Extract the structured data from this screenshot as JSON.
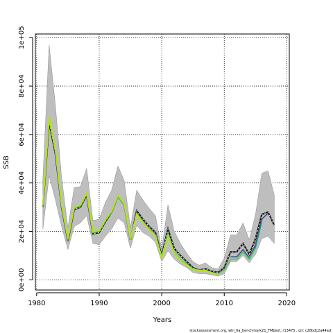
{
  "chart_data": {
    "type": "line",
    "xlabel": "Years",
    "ylabel": "SSB",
    "xlim": [
      1979.8,
      2020.4
    ],
    "ylim": [
      -4200,
      101500
    ],
    "grid": true,
    "x_ticks": [
      1980,
      1990,
      2000,
      2010,
      2020
    ],
    "x_tick_labels": [
      "1980",
      "1990",
      "2000",
      "2010",
      "2020"
    ],
    "y_ticks": [
      0,
      20000,
      40000,
      60000,
      80000,
      100000
    ],
    "y_tick_labels": [
      "0e+00",
      "2e+04",
      "4e+04",
      "6e+04",
      "8e+04",
      "1e+05"
    ],
    "footer": "stockassessment.org, whi_6a_benchmark21_TMbest, r13475 , git: c28bdc2a44ad",
    "colors": {
      "band": "#bebebe",
      "band_edge": "#8c8c8c",
      "main": "#1a1a1a",
      "inner_band": "#7fc97f",
      "series": [
        "#3b528b",
        "#21908c",
        "#5dc863",
        "#b5de2b"
      ]
    },
    "confidence_band": {
      "x": [
        1981,
        1982,
        1983,
        1984,
        1985,
        1986,
        1987,
        1988,
        1989,
        1990,
        1991,
        1992,
        1993,
        1994,
        1995,
        1996,
        1997,
        1998,
        1999,
        2000,
        2001,
        2002,
        2003,
        2004,
        2005,
        2006,
        2007,
        2008,
        2009,
        2010,
        2011,
        2012,
        2013,
        2014,
        2015,
        2016,
        2017,
        2018
      ],
      "low": [
        21000,
        43000,
        33000,
        22000,
        12500,
        22000,
        23500,
        26500,
        15000,
        14500,
        18000,
        21000,
        25500,
        23500,
        13000,
        22500,
        19500,
        18000,
        15500,
        7500,
        12000,
        8500,
        6500,
        5000,
        3000,
        2500,
        2500,
        2000,
        1500,
        2500,
        7500,
        7500,
        10000,
        7000,
        10500,
        17000,
        18000,
        15000
      ],
      "high": [
        42000,
        97000,
        72000,
        42000,
        21500,
        38000,
        38500,
        46000,
        24500,
        25000,
        32000,
        37000,
        47000,
        41000,
        21500,
        37000,
        33000,
        29500,
        26500,
        12500,
        31000,
        20000,
        15000,
        11000,
        7500,
        6000,
        7000,
        5000,
        4500,
        9000,
        18500,
        18500,
        23500,
        16500,
        27000,
        44000,
        45000,
        35000
      ]
    },
    "series": [
      {
        "x": [
          1981,
          1982,
          1983,
          1984,
          1985,
          1986,
          1987,
          1988,
          1989,
          1990,
          1991,
          1992,
          1993,
          1994,
          1995,
          1996,
          1997,
          1998,
          1999,
          2000,
          2001,
          2002,
          2003,
          2004,
          2005,
          2006,
          2007,
          2008,
          2009,
          2010,
          2011,
          2012,
          2013,
          2014,
          2015,
          2016,
          2017,
          2018
        ],
        "y": [
          30000,
          65000,
          52000,
          30000,
          16000,
          29000,
          30000,
          35000,
          19000,
          19500,
          24000,
          28000,
          34500,
          31000,
          16500,
          28500,
          25000,
          22000,
          19500,
          10000,
          21000,
          13000,
          10000,
          7500,
          5000,
          4000,
          4500,
          3500,
          3000,
          5000,
          11500,
          11500,
          15000,
          10500,
          17000,
          27000,
          28000,
          22500
        ]
      },
      {
        "x": [
          2011,
          2012,
          2013,
          2014,
          2015,
          2016,
          2017
        ],
        "y": [
          9500,
          9500,
          12500,
          9000,
          14500,
          25000,
          27500
        ]
      },
      {
        "x": [
          2010,
          2011,
          2012,
          2013,
          2014,
          2015,
          2016
        ],
        "y": [
          4000,
          8500,
          8500,
          11500,
          8500,
          13500,
          24000
        ]
      },
      {
        "x": [
          1981,
          1982,
          1983,
          1984,
          1985,
          1986,
          1987,
          1988,
          1989,
          1990,
          1991,
          1992,
          1993,
          1994,
          1995,
          1996,
          1997,
          1998,
          1999,
          2000,
          2001,
          2002,
          2003,
          2004,
          2005,
          2006,
          2007,
          2008,
          2009,
          2010,
          2011,
          2012,
          2013,
          2014,
          2015
        ],
        "y": [
          30500,
          66500,
          53000,
          30500,
          16500,
          29500,
          30500,
          35500,
          19500,
          20000,
          24500,
          28000,
          34500,
          31000,
          16500,
          27500,
          24000,
          21000,
          18500,
          9500,
          19000,
          11500,
          8500,
          6500,
          4500,
          4000,
          4000,
          3000,
          2500,
          4000,
          8500,
          8500,
          11500,
          8500,
          13000
        ]
      },
      {
        "x": [
          1981,
          1982,
          1983,
          1984,
          1985,
          1986,
          1987,
          1988,
          1989,
          1990,
          1991,
          1992,
          1993,
          1994,
          1995,
          1996,
          1997,
          1998,
          1999,
          2000,
          2001,
          2002,
          2003,
          2004,
          2005,
          2006,
          2007,
          2008,
          2009
        ],
        "y": [
          31000,
          67500,
          54000,
          31000,
          17000,
          30000,
          31000,
          36000,
          20000,
          20500,
          25000,
          28500,
          35000,
          31500,
          17000,
          27000,
          23500,
          20500,
          18000,
          9000,
          18000,
          11000,
          8000,
          6000,
          4200,
          3800,
          3800,
          2800,
          2300
        ]
      }
    ]
  }
}
